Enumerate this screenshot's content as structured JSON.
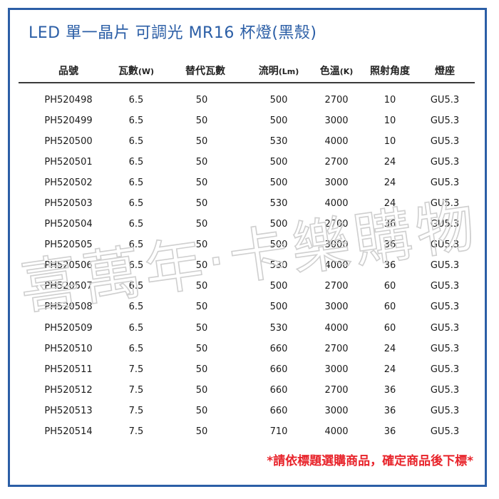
{
  "title": "LED 單一晶片 可調光 MR16 杯燈(黑殼)",
  "columns": [
    {
      "label": "品號",
      "unit": ""
    },
    {
      "label": "瓦數",
      "unit": "(W)"
    },
    {
      "label": "替代瓦數",
      "unit": ""
    },
    {
      "label": "流明",
      "unit": "(Lm)"
    },
    {
      "label": "色溫",
      "unit": "(K)"
    },
    {
      "label": "照射角度",
      "unit": ""
    },
    {
      "label": "燈座",
      "unit": ""
    }
  ],
  "rows": [
    [
      "PH520498",
      "6.5",
      "50",
      "500",
      "2700",
      "10",
      "GU5.3"
    ],
    [
      "PH520499",
      "6.5",
      "50",
      "500",
      "3000",
      "10",
      "GU5.3"
    ],
    [
      "PH520500",
      "6.5",
      "50",
      "530",
      "4000",
      "10",
      "GU5.3"
    ],
    [
      "PH520501",
      "6.5",
      "50",
      "500",
      "2700",
      "24",
      "GU5.3"
    ],
    [
      "PH520502",
      "6.5",
      "50",
      "500",
      "3000",
      "24",
      "GU5.3"
    ],
    [
      "PH520503",
      "6.5",
      "50",
      "530",
      "4000",
      "24",
      "GU5.3"
    ],
    [
      "PH520504",
      "6.5",
      "50",
      "500",
      "2700",
      "36",
      "GU5.3"
    ],
    [
      "PH520505",
      "6.5",
      "50",
      "500",
      "3000",
      "36",
      "GU5.3"
    ],
    [
      "PH520506",
      "6.5",
      "50",
      "530",
      "4000",
      "36",
      "GU5.3"
    ],
    [
      "PH520507",
      "6.5",
      "50",
      "500",
      "2700",
      "60",
      "GU5.3"
    ],
    [
      "PH520508",
      "6.5",
      "50",
      "500",
      "3000",
      "60",
      "GU5.3"
    ],
    [
      "PH520509",
      "6.5",
      "50",
      "530",
      "4000",
      "60",
      "GU5.3"
    ],
    [
      "PH520510",
      "6.5",
      "50",
      "660",
      "2700",
      "24",
      "GU5.3"
    ],
    [
      "PH520511",
      "7.5",
      "50",
      "660",
      "3000",
      "24",
      "GU5.3"
    ],
    [
      "PH520512",
      "7.5",
      "50",
      "660",
      "2700",
      "36",
      "GU5.3"
    ],
    [
      "PH520513",
      "7.5",
      "50",
      "660",
      "3000",
      "36",
      "GU5.3"
    ],
    [
      "PH520514",
      "7.5",
      "50",
      "710",
      "4000",
      "36",
      "GU5.3"
    ]
  ],
  "watermark": "喜萬年·卡樂購物",
  "note": "*請依標題選購商品，確定商品後下標*",
  "colors": {
    "border": "#2b5ea6",
    "title": "#2b5ea6",
    "note": "#e8232a",
    "watermark": "#cfcfcf"
  }
}
